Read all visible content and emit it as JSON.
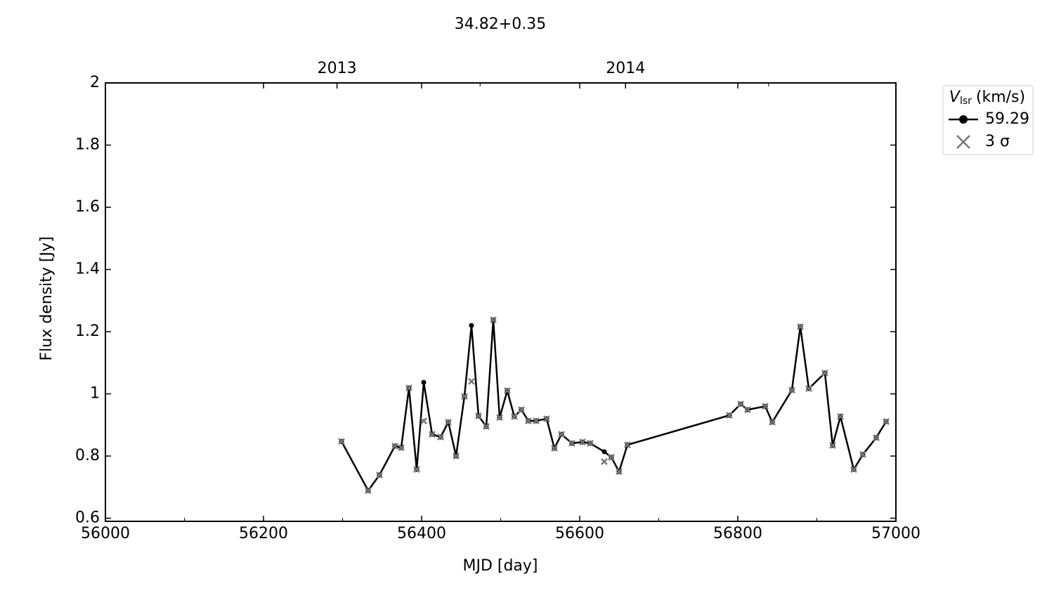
{
  "chart_data": {
    "type": "line",
    "title": "34.82+0.35",
    "xlabel": "MJD [day]",
    "ylabel": "Flux density [Jy]",
    "x": [
      56298.7,
      56332.4,
      56346.7,
      56366.2,
      56374.2,
      56384,
      56393.8,
      56402.7,
      56413.3,
      56424,
      56433.8,
      56443.6,
      56454.2,
      56463.1,
      56472,
      56481.8,
      56490.7,
      56498.7,
      56508.4,
      56517.3,
      56526.2,
      56535.1,
      56544.9,
      56558.2,
      56568,
      56576.9,
      56590.2,
      56603.6,
      56613.3,
      56631.1,
      56640,
      56649.8,
      56660.4,
      56789.3,
      56803.6,
      56812.4,
      56834.7,
      56843.6,
      56868.4,
      56879.1,
      56889.8,
      56910.2,
      56920,
      56929.8,
      56946.7,
      56958.2,
      56975.1,
      56987.6
    ],
    "series": [
      {
        "name": "59.29",
        "color": "#000000",
        "marker": "circle",
        "line": true,
        "values": [
          0.847,
          0.689,
          0.739,
          0.832,
          0.827,
          1.019,
          0.757,
          1.037,
          0.87,
          0.861,
          0.909,
          0.8,
          0.992,
          1.22,
          0.929,
          0.895,
          1.238,
          0.924,
          1.01,
          0.927,
          0.949,
          0.913,
          0.913,
          0.92,
          0.825,
          0.87,
          0.841,
          0.845,
          0.841,
          0.814,
          0.796,
          0.75,
          0.836,
          0.931,
          0.967,
          0.949,
          0.96,
          0.909,
          1.012,
          1.216,
          1.017,
          1.067,
          0.834,
          0.927,
          0.757,
          0.805,
          0.859,
          0.911
        ]
      },
      {
        "name": "3 σ",
        "color": "#777777",
        "marker": "x",
        "line": false,
        "values": [
          0.847,
          0.689,
          0.739,
          0.832,
          0.827,
          1.019,
          0.757,
          0.913,
          0.87,
          0.861,
          0.909,
          0.8,
          0.992,
          1.04,
          0.929,
          0.895,
          1.238,
          0.924,
          1.01,
          0.927,
          0.949,
          0.913,
          0.913,
          0.92,
          0.825,
          0.87,
          0.841,
          0.845,
          0.841,
          0.782,
          0.796,
          0.75,
          0.836,
          0.931,
          0.967,
          0.949,
          0.96,
          0.909,
          1.012,
          1.216,
          1.017,
          1.067,
          0.834,
          0.927,
          0.757,
          0.805,
          0.859,
          0.911
        ]
      }
    ],
    "xlim": [
      56000,
      57000
    ],
    "xticks": [
      56000,
      56200,
      56400,
      56600,
      56800,
      57000
    ],
    "xminorticks": [
      56100,
      56300,
      56500,
      56700,
      56900
    ],
    "ylim": [
      0.59,
      2.0
    ],
    "yticks": [
      0.6,
      0.8,
      1.0,
      1.2,
      1.4,
      1.6,
      1.8,
      2.0
    ],
    "top_ticks": [
      {
        "value": 56293,
        "label": "2013"
      },
      {
        "value": 56658,
        "label": "2014"
      }
    ],
    "top_minorticks": [
      56474,
      56839
    ],
    "legend": {
      "corner": "outside-upper-right",
      "title": {
        "main": "V",
        "sub": "lsr",
        "rest": "(km/s)"
      }
    },
    "tick_direction": "in",
    "grid": false
  }
}
